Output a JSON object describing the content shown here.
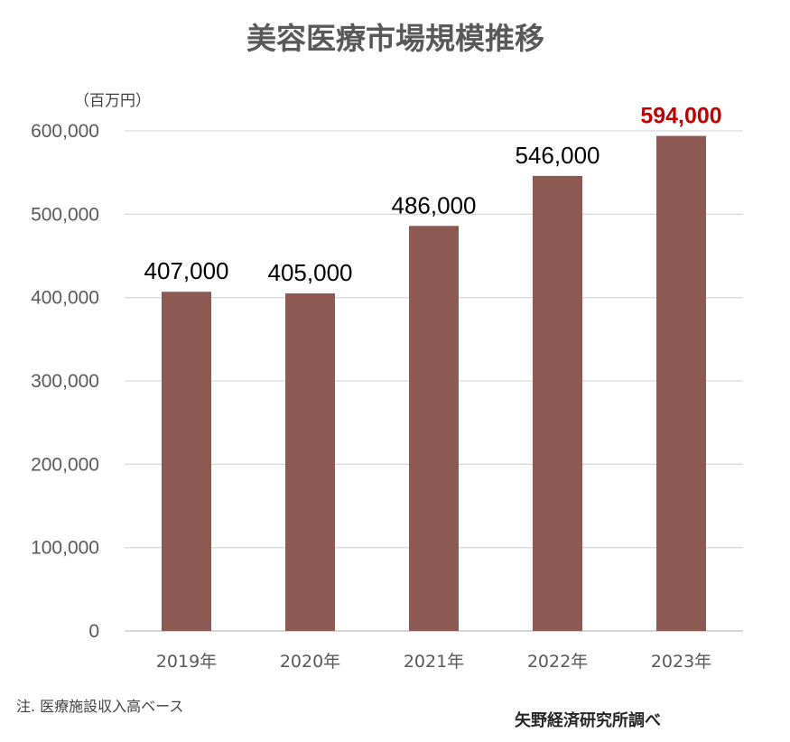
{
  "chart_data": {
    "type": "bar",
    "title": "美容医療市場規模推移",
    "unit_label": "（百万円）",
    "categories": [
      "2019年",
      "2020年",
      "2021年",
      "2022年",
      "2023年"
    ],
    "values": [
      407000,
      405000,
      486000,
      546000,
      594000
    ],
    "value_labels": [
      "407,000",
      "405,000",
      "486,000",
      "546,000",
      "594,000"
    ],
    "yticks": [
      "0",
      "100,000",
      "200,000",
      "300,000",
      "400,000",
      "500,000",
      "600,000"
    ],
    "ylim": [
      0,
      600000
    ],
    "grid": true,
    "legend": "none",
    "bar_color": "#8c5a52",
    "highlight_index": 4,
    "highlight_color": "#c00000"
  },
  "footer": {
    "note": "注. 医療施設収入高ベース",
    "source": "矢野経済研究所調べ"
  }
}
